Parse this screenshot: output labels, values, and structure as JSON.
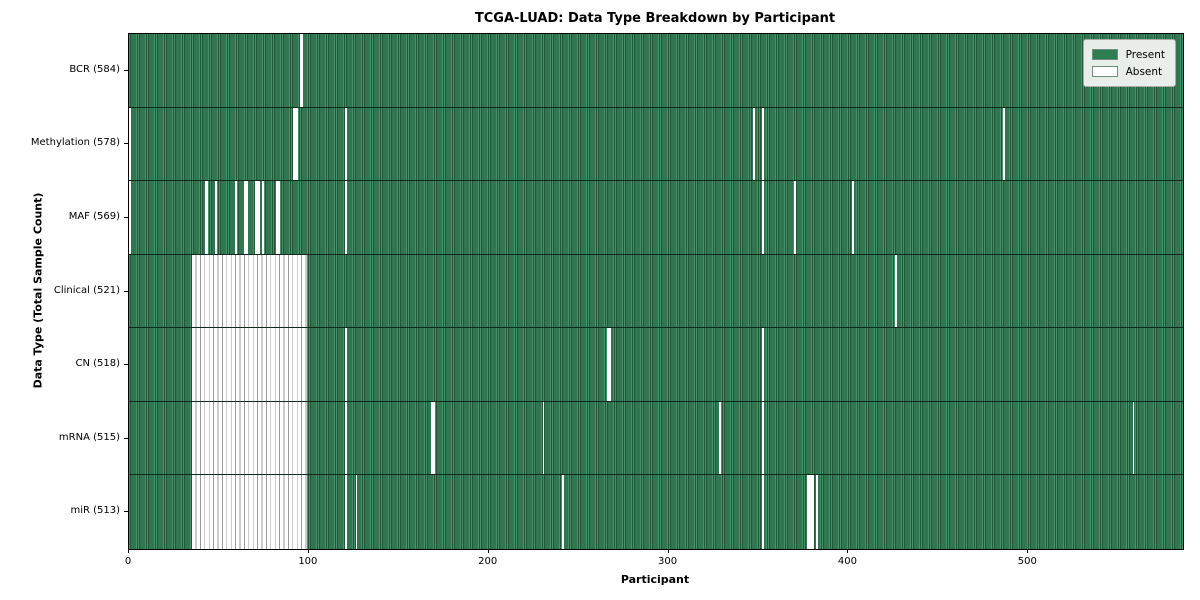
{
  "chart_data": {
    "type": "heatmap",
    "title": "TCGA-LUAD: Data Type Breakdown by Participant",
    "xlabel": "Participant",
    "ylabel": "Data Type (Total Sample Count)",
    "x_max": 586,
    "x_ticks": [
      0,
      100,
      200,
      300,
      400,
      500
    ],
    "grid": false,
    "legend_position": "upper right",
    "colors": {
      "present": "#2e7d50",
      "present_stripe_light": "#46936a",
      "present_stripe_dark": "#1f5738",
      "absent": "#ffffff",
      "row_divider": "#0b1e12",
      "legend_background": "#eaeeea"
    },
    "legend": [
      {
        "label": "Present",
        "color": "#2e7d50"
      },
      {
        "label": "Absent",
        "color": "#ffffff"
      }
    ],
    "rows": [
      {
        "label": "BCR (584)",
        "data_type": "BCR",
        "present_count": 584,
        "absent_runs": [
          [
            95,
            2
          ]
        ]
      },
      {
        "label": "Methylation (578)",
        "data_type": "Methylation",
        "present_count": 578,
        "absent_runs": [
          [
            0,
            1
          ],
          [
            91,
            3
          ],
          [
            120,
            1
          ],
          [
            347,
            1
          ],
          [
            352,
            1
          ],
          [
            486,
            1
          ]
        ]
      },
      {
        "label": "MAF (569)",
        "data_type": "MAF",
        "present_count": 569,
        "absent_runs": [
          [
            0,
            1
          ],
          [
            42,
            2
          ],
          [
            48,
            1
          ],
          [
            59,
            1
          ],
          [
            64,
            2
          ],
          [
            70,
            3
          ],
          [
            74,
            1
          ],
          [
            82,
            2
          ],
          [
            120,
            1
          ],
          [
            352,
            1
          ],
          [
            370,
            1
          ],
          [
            402,
            1
          ]
        ]
      },
      {
        "label": "Clinical (521)",
        "data_type": "Clinical",
        "present_count": 521,
        "absent_runs": [
          [
            35,
            64
          ],
          [
            426,
            1
          ]
        ]
      },
      {
        "label": "CN (518)",
        "data_type": "CN",
        "present_count": 518,
        "absent_runs": [
          [
            35,
            64
          ],
          [
            120,
            1
          ],
          [
            266,
            2
          ],
          [
            352,
            1
          ]
        ]
      },
      {
        "label": "mRNA (515)",
        "data_type": "mRNA",
        "present_count": 515,
        "absent_runs": [
          [
            35,
            64
          ],
          [
            120,
            1
          ],
          [
            168,
            2
          ],
          [
            230,
            1
          ],
          [
            328,
            1
          ],
          [
            352,
            1
          ],
          [
            558,
            1
          ]
        ]
      },
      {
        "label": "miR (513)",
        "data_type": "miR",
        "present_count": 513,
        "absent_runs": [
          [
            35,
            64
          ],
          [
            120,
            1
          ],
          [
            126,
            1
          ],
          [
            241,
            1
          ],
          [
            352,
            1
          ],
          [
            377,
            4
          ],
          [
            382,
            1
          ]
        ]
      }
    ]
  }
}
